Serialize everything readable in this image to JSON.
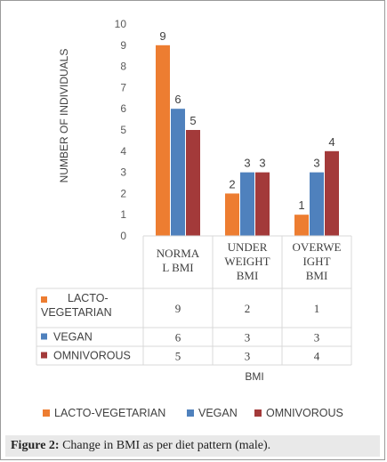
{
  "chart_data": {
    "type": "bar",
    "categories": [
      [
        "NORMA",
        "L BMI"
      ],
      [
        "UNDER",
        "WEIGHT",
        "BMI"
      ],
      [
        "OVERWE",
        "IGHT",
        "BMI"
      ]
    ],
    "series": [
      {
        "name": "LACTO-VEGETARIAN",
        "row_label": [
          "LACTO-",
          "VEGETARIAN"
        ],
        "color": "#ed7d31",
        "values": [
          9,
          2,
          1
        ]
      },
      {
        "name": "VEGAN",
        "row_label": [
          "VEGAN"
        ],
        "color": "#4f81bd",
        "values": [
          6,
          3,
          3
        ]
      },
      {
        "name": "OMNIVOROUS",
        "row_label": [
          "OMNIVOROUS"
        ],
        "color": "#a33a3a",
        "values": [
          5,
          3,
          4
        ]
      }
    ],
    "ylim": [
      0,
      10
    ],
    "yticks": [
      0,
      1,
      2,
      3,
      4,
      5,
      6,
      7,
      8,
      9,
      10
    ],
    "ylabel": "NUMBER OF INDIVIDUALS",
    "xlabel": "BMI",
    "data_table": true,
    "legend_position": "bottom"
  },
  "caption": {
    "label": "Figure 2:",
    "text": " Change in BMI as per diet pattern (male)."
  }
}
